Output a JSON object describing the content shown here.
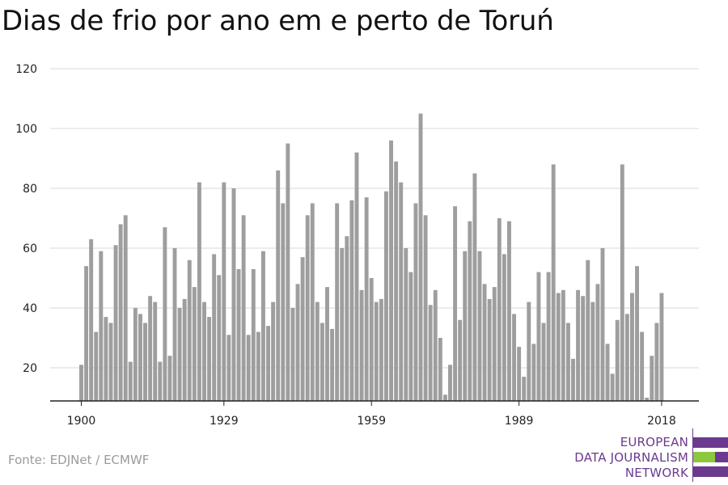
{
  "colors": {
    "bar": "#9e9e9e",
    "grid": "#d9d9d9",
    "axis": "#222222",
    "brand_purple": "#6b3a8f",
    "brand_green": "#8dc63f"
  },
  "source": "Fonte: EDJNet / ECMWF",
  "logo": {
    "line1": "EUROPEAN",
    "line2": "DATA JOURNALISM",
    "line3": "NETWORK"
  },
  "chart_data": {
    "type": "bar",
    "title": "Dias de frio por ano em e perto de Toruń",
    "xlabel": "",
    "ylabel": "",
    "ylim": [
      9,
      120
    ],
    "yticks": [
      20,
      40,
      60,
      80,
      100,
      120
    ],
    "xticks": [
      1900,
      1929,
      1959,
      1989,
      2018
    ],
    "grid": true,
    "x": [
      1900,
      1901,
      1902,
      1903,
      1904,
      1905,
      1906,
      1907,
      1908,
      1909,
      1910,
      1911,
      1912,
      1913,
      1914,
      1915,
      1916,
      1917,
      1918,
      1919,
      1920,
      1921,
      1922,
      1923,
      1924,
      1925,
      1926,
      1927,
      1928,
      1929,
      1930,
      1931,
      1932,
      1933,
      1934,
      1935,
      1936,
      1937,
      1938,
      1939,
      1940,
      1941,
      1942,
      1943,
      1944,
      1945,
      1946,
      1947,
      1948,
      1949,
      1950,
      1951,
      1952,
      1953,
      1954,
      1955,
      1956,
      1957,
      1958,
      1959,
      1960,
      1961,
      1962,
      1963,
      1964,
      1965,
      1966,
      1967,
      1968,
      1969,
      1970,
      1971,
      1972,
      1973,
      1974,
      1975,
      1976,
      1977,
      1978,
      1979,
      1980,
      1981,
      1982,
      1983,
      1984,
      1985,
      1986,
      1987,
      1988,
      1989,
      1990,
      1991,
      1992,
      1993,
      1994,
      1995,
      1996,
      1997,
      1998,
      1999,
      2000,
      2001,
      2002,
      2003,
      2004,
      2005,
      2006,
      2007,
      2008,
      2009,
      2010,
      2011,
      2012,
      2013,
      2014,
      2015,
      2016,
      2017,
      2018
    ],
    "values": [
      21,
      54,
      63,
      32,
      59,
      37,
      35,
      61,
      68,
      71,
      22,
      40,
      38,
      35,
      44,
      42,
      22,
      67,
      24,
      60,
      40,
      43,
      56,
      47,
      82,
      42,
      37,
      58,
      51,
      82,
      31,
      80,
      53,
      71,
      31,
      53,
      32,
      59,
      34,
      42,
      86,
      75,
      95,
      40,
      48,
      57,
      71,
      75,
      42,
      35,
      47,
      33,
      75,
      60,
      64,
      76,
      92,
      46,
      77,
      50,
      42,
      43,
      79,
      96,
      89,
      82,
      60,
      52,
      75,
      105,
      71,
      41,
      46,
      30,
      11,
      21,
      74,
      36,
      59,
      69,
      85,
      59,
      48,
      43,
      47,
      70,
      58,
      69,
      38,
      27,
      17,
      42,
      28,
      52,
      35,
      52,
      88,
      45,
      46,
      35,
      23,
      46,
      44,
      56,
      42,
      48,
      60,
      28,
      18,
      36,
      88,
      38,
      45,
      54,
      32,
      10,
      24,
      35,
      45
    ]
  }
}
